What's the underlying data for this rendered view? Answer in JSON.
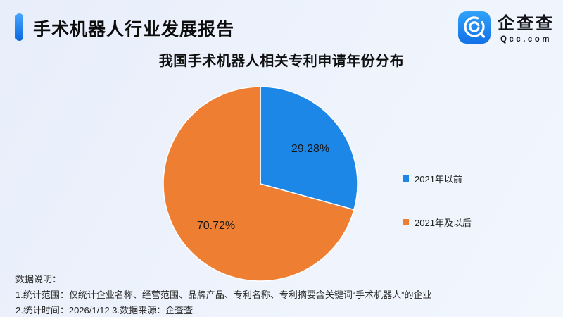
{
  "header": {
    "title": "手术机器人行业发展报告",
    "accent_color": "#0a67e0"
  },
  "logo": {
    "name_cn": "企查查",
    "name_en": "Qcc.com",
    "icon": "qcc-spiral-q-icon",
    "icon_color_top": "#31a3f8",
    "icon_color_bottom": "#1270e8"
  },
  "chart_data": {
    "type": "pie",
    "title": "我国手术机器人相关专利申请年份分布",
    "start_angle_deg": 0,
    "legend_position": "right",
    "slices": [
      {
        "label": "2021年以前",
        "value": 29.28,
        "display": "29.28%",
        "color": "#1d87e8"
      },
      {
        "label": "2021年及以后",
        "value": 70.72,
        "display": "70.72%",
        "color": "#ee7f32"
      }
    ]
  },
  "footnotes": {
    "heading": "数据说明：",
    "line1": "1.统计范围：仅统计企业名称、经营范围、品牌产品、专利名称、专利摘要含关键词“手术机器人”的企业",
    "line2": "2.统计时间：2026/1/12  3.数据来源：企查查"
  }
}
